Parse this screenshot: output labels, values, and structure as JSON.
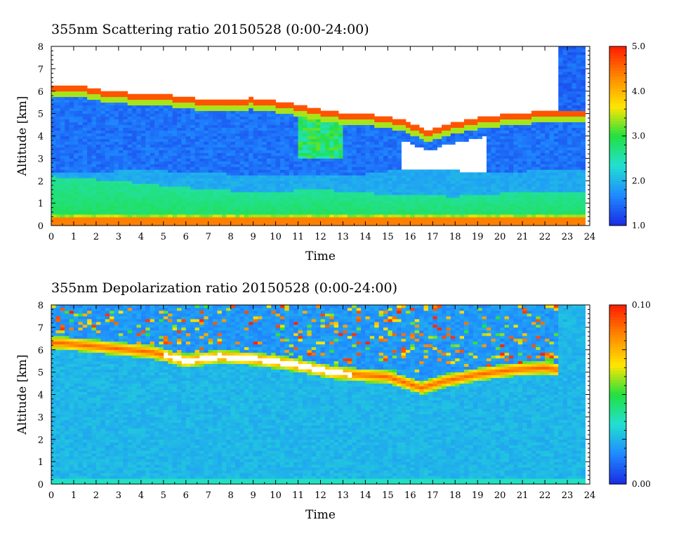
{
  "chart_data": [
    {
      "type": "heatmap",
      "title": "355nm Scattering ratio  20150528 (0:00-24:00)",
      "xlabel": "Time",
      "ylabel": "Altitude [km]",
      "xlim": [
        0,
        24
      ],
      "ylim": [
        0,
        8
      ],
      "x_ticks": [
        "0",
        "1",
        "2",
        "3",
        "4",
        "5",
        "6",
        "7",
        "8",
        "9",
        "10",
        "11",
        "12",
        "13",
        "14",
        "15",
        "16",
        "17",
        "18",
        "19",
        "20",
        "21",
        "22",
        "23",
        "24"
      ],
      "y_ticks": [
        "0",
        "1",
        "2",
        "3",
        "4",
        "5",
        "6",
        "7",
        "8"
      ],
      "colorbar": {
        "min": 1.0,
        "max": 5.0,
        "tick_labels": [
          "1.0",
          "2.0",
          "3.0",
          "4.0",
          "5.0"
        ]
      },
      "colormap": [
        "#1a2ee6",
        "#1f8cff",
        "#22e0d0",
        "#22e040",
        "#ffe600",
        "#ff8a00",
        "#ff2200"
      ],
      "cloud_top_km": [
        [
          0.3,
          6.3
        ],
        [
          1.5,
          6.2
        ],
        [
          2.5,
          6.0
        ],
        [
          4,
          5.9
        ],
        [
          5.5,
          5.8
        ],
        [
          7,
          5.6
        ],
        [
          9,
          5.7
        ],
        [
          10.5,
          5.5
        ],
        [
          11.5,
          5.3
        ],
        [
          12.5,
          5.1
        ],
        [
          13.5,
          5.0
        ],
        [
          15,
          4.9
        ],
        [
          16,
          4.6
        ],
        [
          16.8,
          4.2
        ],
        [
          17.5,
          4.5
        ],
        [
          19,
          4.8
        ],
        [
          20.5,
          5.0
        ],
        [
          22,
          5.1
        ],
        [
          22.6,
          5.1
        ]
      ],
      "cloud_base_km": [
        [
          0.3,
          2.4
        ],
        [
          2,
          2.4
        ],
        [
          4,
          2.5
        ],
        [
          6,
          2.4
        ],
        [
          8,
          2.3
        ],
        [
          10,
          2.3
        ],
        [
          11.5,
          2.2
        ],
        [
          12.5,
          2.2
        ],
        [
          14,
          2.3
        ],
        [
          15.5,
          2.5
        ],
        [
          17,
          2.5
        ],
        [
          19,
          2.4
        ],
        [
          20.5,
          2.4
        ],
        [
          22.6,
          2.5
        ]
      ],
      "aerosol_layer_top_km": [
        [
          0,
          2.2
        ],
        [
          3,
          2.0
        ],
        [
          6,
          1.7
        ],
        [
          9,
          1.5
        ],
        [
          12,
          1.6
        ],
        [
          15,
          1.4
        ],
        [
          18,
          1.3
        ],
        [
          21,
          1.5
        ],
        [
          23.8,
          1.5
        ]
      ]
    },
    {
      "type": "heatmap",
      "title": "355nm Depolarization ratio  20150528 (0:00-24:00)",
      "xlabel": "Time",
      "ylabel": "Altitude [km]",
      "xlim": [
        0,
        24
      ],
      "ylim": [
        0,
        8
      ],
      "x_ticks": [
        "0",
        "1",
        "2",
        "3",
        "4",
        "5",
        "6",
        "7",
        "8",
        "9",
        "10",
        "11",
        "12",
        "13",
        "14",
        "15",
        "16",
        "17",
        "18",
        "19",
        "20",
        "21",
        "22",
        "23",
        "24"
      ],
      "y_ticks": [
        "0",
        "1",
        "2",
        "3",
        "4",
        "5",
        "6",
        "7",
        "8"
      ],
      "colorbar": {
        "min": 0.0,
        "max": 0.1,
        "tick_labels": [
          "0.00",
          "0.10"
        ]
      },
      "colormap": [
        "#1a2ee6",
        "#1f8cff",
        "#22e0d0",
        "#22e040",
        "#ffe600",
        "#ff8a00",
        "#ff2200"
      ],
      "high_depol_layer_km": [
        [
          0.5,
          6.3
        ],
        [
          2.5,
          6.1
        ],
        [
          4.5,
          5.9
        ],
        [
          6,
          5.5
        ],
        [
          7.5,
          5.7
        ],
        [
          9,
          5.6
        ],
        [
          10.5,
          5.4
        ],
        [
          11.5,
          5.2
        ],
        [
          12.5,
          5.0
        ],
        [
          13.5,
          4.9
        ],
        [
          15,
          4.8
        ],
        [
          16.5,
          4.3
        ],
        [
          17.5,
          4.6
        ],
        [
          19,
          4.9
        ],
        [
          20.5,
          5.1
        ],
        [
          22,
          5.2
        ],
        [
          22.6,
          5.1
        ]
      ]
    }
  ]
}
